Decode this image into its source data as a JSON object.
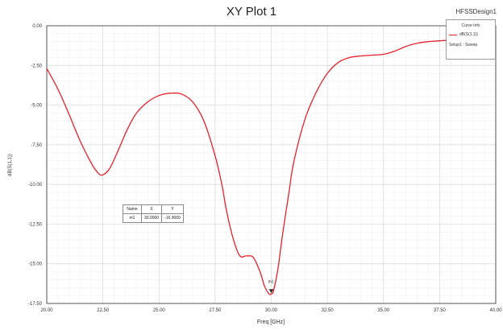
{
  "window": {
    "title": "XY Plot 1",
    "design_name": "HFSSDesign1"
  },
  "legend": {
    "header": "Curve Info",
    "curve_name": "dB(S(1,1))",
    "setup_label": "Setup1 : Sweep"
  },
  "marker_table": {
    "headers": [
      "Name",
      "X",
      "Y"
    ],
    "rows": [
      [
        "m1",
        "30.0000",
        "-16.9060"
      ]
    ]
  },
  "marker": {
    "label": "m1",
    "x": 30.0,
    "y": -16.906
  },
  "colors": {
    "curve": "#e8202a",
    "grid": "#d7d7d7",
    "axis": "#555555",
    "background": "#ffffff"
  },
  "chart_data": {
    "type": "line",
    "title": "XY Plot 1",
    "xlabel": "Freq [GHz]",
    "ylabel": "dB(S(1,1))",
    "xlim": [
      20.0,
      40.0
    ],
    "ylim": [
      -17.5,
      0.0
    ],
    "xticks": [
      "20.00",
      "22.50",
      "25.00",
      "27.50",
      "30.00",
      "32.50",
      "35.00",
      "37.50",
      "40.00"
    ],
    "yticks": [
      "0.00",
      "-2.50",
      "-5.00",
      "-7.50",
      "-10.00",
      "-12.50",
      "-15.00",
      "-17.50"
    ],
    "grid": true,
    "legend_position": "top-right",
    "series": [
      {
        "name": "dB(S(1,1))",
        "x": [
          20.0,
          20.5,
          21.0,
          21.5,
          22.0,
          22.3,
          22.5,
          22.8,
          23.2,
          23.6,
          24.0,
          24.5,
          25.0,
          25.5,
          26.0,
          26.5,
          27.0,
          27.5,
          27.8,
          28.0,
          28.3,
          28.6,
          28.9,
          29.2,
          29.5,
          29.7,
          29.9,
          30.0,
          30.1,
          30.3,
          30.5,
          30.8,
          31.0,
          31.5,
          32.0,
          32.5,
          33.0,
          33.5,
          34.0,
          34.5,
          35.0,
          35.5,
          36.0,
          36.5,
          37.0,
          37.5,
          38.0,
          38.5,
          39.0,
          39.5,
          40.0
        ],
        "y": [
          -2.7,
          -4.0,
          -5.6,
          -7.3,
          -8.7,
          -9.3,
          -9.4,
          -9.0,
          -7.8,
          -6.5,
          -5.5,
          -4.8,
          -4.4,
          -4.25,
          -4.3,
          -4.8,
          -6.0,
          -8.2,
          -10.0,
          -11.6,
          -13.4,
          -14.5,
          -14.5,
          -14.6,
          -15.5,
          -16.4,
          -16.9,
          -16.9,
          -16.7,
          -15.3,
          -13.2,
          -10.4,
          -8.6,
          -5.9,
          -4.2,
          -3.0,
          -2.3,
          -2.0,
          -1.9,
          -1.85,
          -1.8,
          -1.6,
          -1.3,
          -1.1,
          -1.0,
          -0.95,
          -0.9,
          -0.85,
          -0.85,
          -0.85,
          -0.85
        ]
      }
    ]
  }
}
